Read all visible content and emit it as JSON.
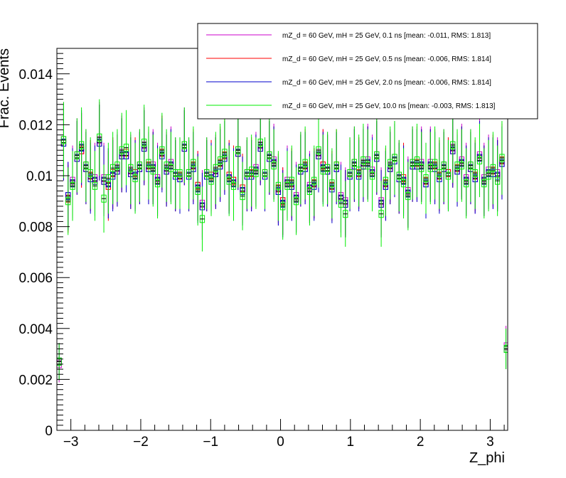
{
  "chart_data": {
    "type": "histogram",
    "xlabel": "Z_phi",
    "ylabel": "Frac. Events",
    "xlim": [
      -3.2,
      3.25
    ],
    "ylim": [
      0,
      0.015
    ],
    "x_ticks": [
      "−3",
      "−2",
      "−1",
      "0",
      "1",
      "2",
      "3"
    ],
    "y_ticks": [
      "0",
      "0.002",
      "0.004",
      "0.006",
      "0.008",
      "0.01",
      "0.012",
      "0.014"
    ],
    "bins": {
      "start": -3.2,
      "end": 3.2,
      "count": 100,
      "overflow_last_x": 3.25
    },
    "legend_position": "top-right",
    "grid": false,
    "series": [
      {
        "name": "mZ_d = 60 GeV, mH = 25 GeV, 0.1 ns [mean: -0.011, RMS: 1.813]",
        "color": "#cc00cc",
        "values": [
          0.0026,
          0.0114,
          0.0092,
          0.0098,
          0.0108,
          0.011,
          0.0104,
          0.01,
          0.0099,
          0.0114,
          0.0099,
          0.0097,
          0.0101,
          0.0103,
          0.0109,
          0.0108,
          0.0102,
          0.01,
          0.0104,
          0.0112,
          0.0103,
          0.0104,
          0.0099,
          0.0109,
          0.0103,
          0.0105,
          0.0101,
          0.0099,
          0.0112,
          0.0101,
          0.0103,
          0.0096,
          0.0089,
          0.0101,
          0.01,
          0.0102,
          0.0104,
          0.0107,
          0.0099,
          0.0098,
          0.011,
          0.0094,
          0.0101,
          0.01,
          0.0103,
          0.0112,
          0.0101,
          0.0108,
          0.0106,
          0.0094,
          0.009,
          0.0098,
          0.0096,
          0.0092,
          0.0103,
          0.0103,
          0.0096,
          0.0097,
          0.0109,
          0.0104,
          0.0103,
          0.0096,
          0.0103,
          0.0092,
          0.009,
          0.0101,
          0.0105,
          0.0101,
          0.0105,
          0.0106,
          0.0102,
          0.0108,
          0.009,
          0.0096,
          0.0104,
          0.0107,
          0.01,
          0.0098,
          0.0094,
          0.0105,
          0.0104,
          0.0105,
          0.0097,
          0.0105,
          0.0103,
          0.01,
          0.0104,
          0.0101,
          0.0111,
          0.0102,
          0.0106,
          0.0099,
          0.0104,
          0.0099,
          0.0108,
          0.0099,
          0.0102,
          0.0101,
          0.0101,
          0.0105,
          0.0033
        ]
      },
      {
        "name": "mZ_d = 60 GeV, mH = 25 GeV, 0.5 ns [mean: -0.006, RMS: 1.814]",
        "color": "#ff0000",
        "values": [
          0.0027,
          0.0113,
          0.0091,
          0.0097,
          0.0107,
          0.011,
          0.0103,
          0.01,
          0.0098,
          0.0113,
          0.0098,
          0.0096,
          0.0101,
          0.0102,
          0.0108,
          0.0109,
          0.0101,
          0.0101,
          0.0103,
          0.0111,
          0.0104,
          0.0103,
          0.0098,
          0.0109,
          0.0102,
          0.0104,
          0.01,
          0.01,
          0.0111,
          0.01,
          0.0104,
          0.0096,
          0.0088,
          0.01,
          0.01,
          0.0101,
          0.0105,
          0.0108,
          0.01,
          0.0098,
          0.0109,
          0.0095,
          0.01,
          0.0101,
          0.0102,
          0.0111,
          0.01,
          0.0107,
          0.0105,
          0.0095,
          0.009,
          0.0097,
          0.0097,
          0.0091,
          0.0102,
          0.0104,
          0.0095,
          0.0097,
          0.0108,
          0.0104,
          0.0102,
          0.0096,
          0.0104,
          0.0091,
          0.0089,
          0.01,
          0.0104,
          0.0101,
          0.0104,
          0.0105,
          0.0101,
          0.0107,
          0.0089,
          0.0097,
          0.0103,
          0.0106,
          0.0099,
          0.0099,
          0.0093,
          0.0104,
          0.0105,
          0.0104,
          0.0098,
          0.0104,
          0.0104,
          0.01,
          0.0103,
          0.0101,
          0.011,
          0.0103,
          0.0105,
          0.0098,
          0.0103,
          0.01,
          0.0107,
          0.0098,
          0.0101,
          0.0102,
          0.01,
          0.0106,
          0.0032
        ]
      },
      {
        "name": "mZ_d = 60 GeV, mH = 25 GeV, 2.0 ns [mean: -0.006, RMS: 1.814]",
        "color": "#0000cc",
        "values": [
          0.0027,
          0.0113,
          0.0092,
          0.0097,
          0.0107,
          0.0111,
          0.0103,
          0.0099,
          0.0098,
          0.0113,
          0.0098,
          0.0097,
          0.01,
          0.0102,
          0.0108,
          0.0108,
          0.0101,
          0.01,
          0.0103,
          0.0111,
          0.0103,
          0.0103,
          0.0098,
          0.0108,
          0.0102,
          0.0104,
          0.01,
          0.0099,
          0.0111,
          0.01,
          0.0103,
          0.0095,
          0.0088,
          0.01,
          0.0099,
          0.0101,
          0.0104,
          0.0107,
          0.0099,
          0.0097,
          0.0109,
          0.0094,
          0.01,
          0.01,
          0.0102,
          0.0111,
          0.01,
          0.0107,
          0.0105,
          0.0094,
          0.0089,
          0.0097,
          0.0096,
          0.0091,
          0.0102,
          0.0103,
          0.0095,
          0.0096,
          0.0108,
          0.0103,
          0.0102,
          0.0095,
          0.0103,
          0.0091,
          0.0089,
          0.01,
          0.0104,
          0.01,
          0.0104,
          0.0105,
          0.0101,
          0.0107,
          0.0089,
          0.0096,
          0.0103,
          0.0106,
          0.0099,
          0.0098,
          0.0093,
          0.0104,
          0.0104,
          0.0104,
          0.0097,
          0.0104,
          0.0103,
          0.0099,
          0.0103,
          0.01,
          0.011,
          0.0102,
          0.0105,
          0.0098,
          0.0103,
          0.0099,
          0.0107,
          0.0098,
          0.0101,
          0.0101,
          0.01,
          0.0105,
          0.0032
        ]
      },
      {
        "name": "mZ_d = 60 GeV, mH = 25 GeV, 10.0 ns [mean: -0.003, RMS: 1.813]",
        "color": "#00ee00",
        "values": [
          0.0027,
          0.0114,
          0.009,
          0.0096,
          0.0108,
          0.0112,
          0.0104,
          0.0101,
          0.0096,
          0.0115,
          0.0091,
          0.0099,
          0.0103,
          0.0104,
          0.011,
          0.0111,
          0.0103,
          0.0099,
          0.0104,
          0.0113,
          0.0105,
          0.0102,
          0.0097,
          0.011,
          0.0104,
          0.0103,
          0.0101,
          0.0101,
          0.0112,
          0.0101,
          0.0105,
          0.0094,
          0.0083,
          0.0101,
          0.0098,
          0.0103,
          0.0106,
          0.0109,
          0.0098,
          0.0096,
          0.011,
          0.0092,
          0.0101,
          0.0102,
          0.0101,
          0.0113,
          0.0101,
          0.0108,
          0.0104,
          0.0096,
          0.0088,
          0.0096,
          0.0098,
          0.009,
          0.0103,
          0.0105,
          0.0094,
          0.0098,
          0.011,
          0.0102,
          0.0103,
          0.0097,
          0.0104,
          0.0089,
          0.0085,
          0.0101,
          0.0105,
          0.0102,
          0.0106,
          0.0104,
          0.01,
          0.0108,
          0.0085,
          0.0098,
          0.0105,
          0.0107,
          0.01,
          0.0097,
          0.0092,
          0.0105,
          0.0106,
          0.0103,
          0.0099,
          0.0103,
          0.0105,
          0.0101,
          0.0104,
          0.01,
          0.0112,
          0.0104,
          0.0104,
          0.0097,
          0.0104,
          0.0101,
          0.0106,
          0.0097,
          0.01,
          0.0103,
          0.0098,
          0.0107,
          0.0032
        ]
      }
    ]
  }
}
